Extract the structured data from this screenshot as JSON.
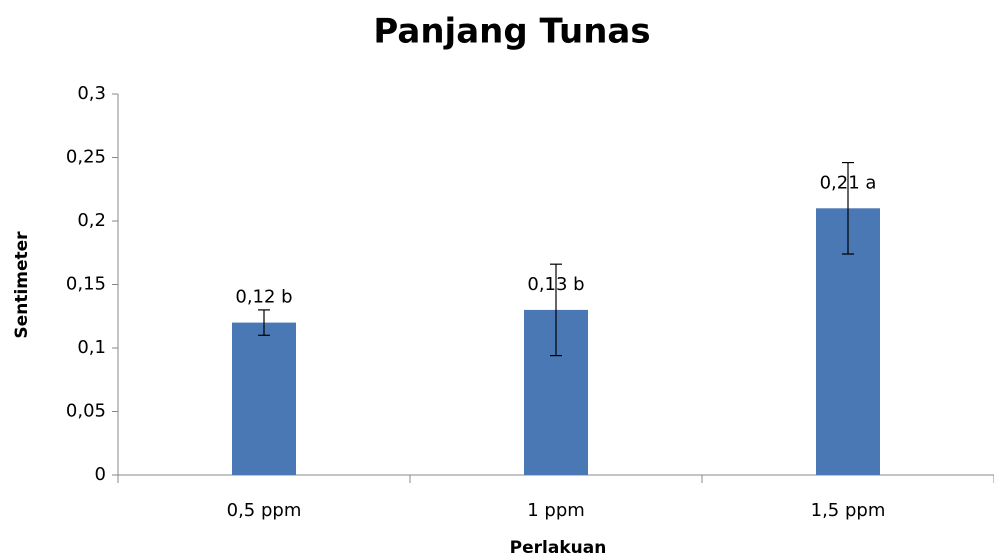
{
  "chart_data": {
    "type": "bar",
    "title": "Panjang Tunas",
    "x_label": "Perlakuan",
    "y_label": "Sentimeter",
    "categories": [
      "0,5 ppm",
      "1 ppm",
      "1,5 ppm"
    ],
    "values": [
      0.12,
      0.13,
      0.21
    ],
    "value_labels": [
      "0,12 b",
      "0,13 b",
      "0,21 a"
    ],
    "errors": [
      0.01,
      0.036,
      0.036
    ],
    "color": "#4a78b4",
    "ylim": [
      0,
      0.3
    ],
    "yticks": [
      0,
      {
        "value": 0.05,
        "label": "0,05"
      },
      {
        "value": 0.1,
        "label": "0,1"
      },
      {
        "value": 0.15,
        "label": "0,15"
      },
      {
        "value": 0.2,
        "label": "0,2"
      },
      {
        "value": 0.25,
        "label": "0,25"
      },
      {
        "value": 0.3,
        "label": "0,3"
      }
    ],
    "grid": false
  }
}
